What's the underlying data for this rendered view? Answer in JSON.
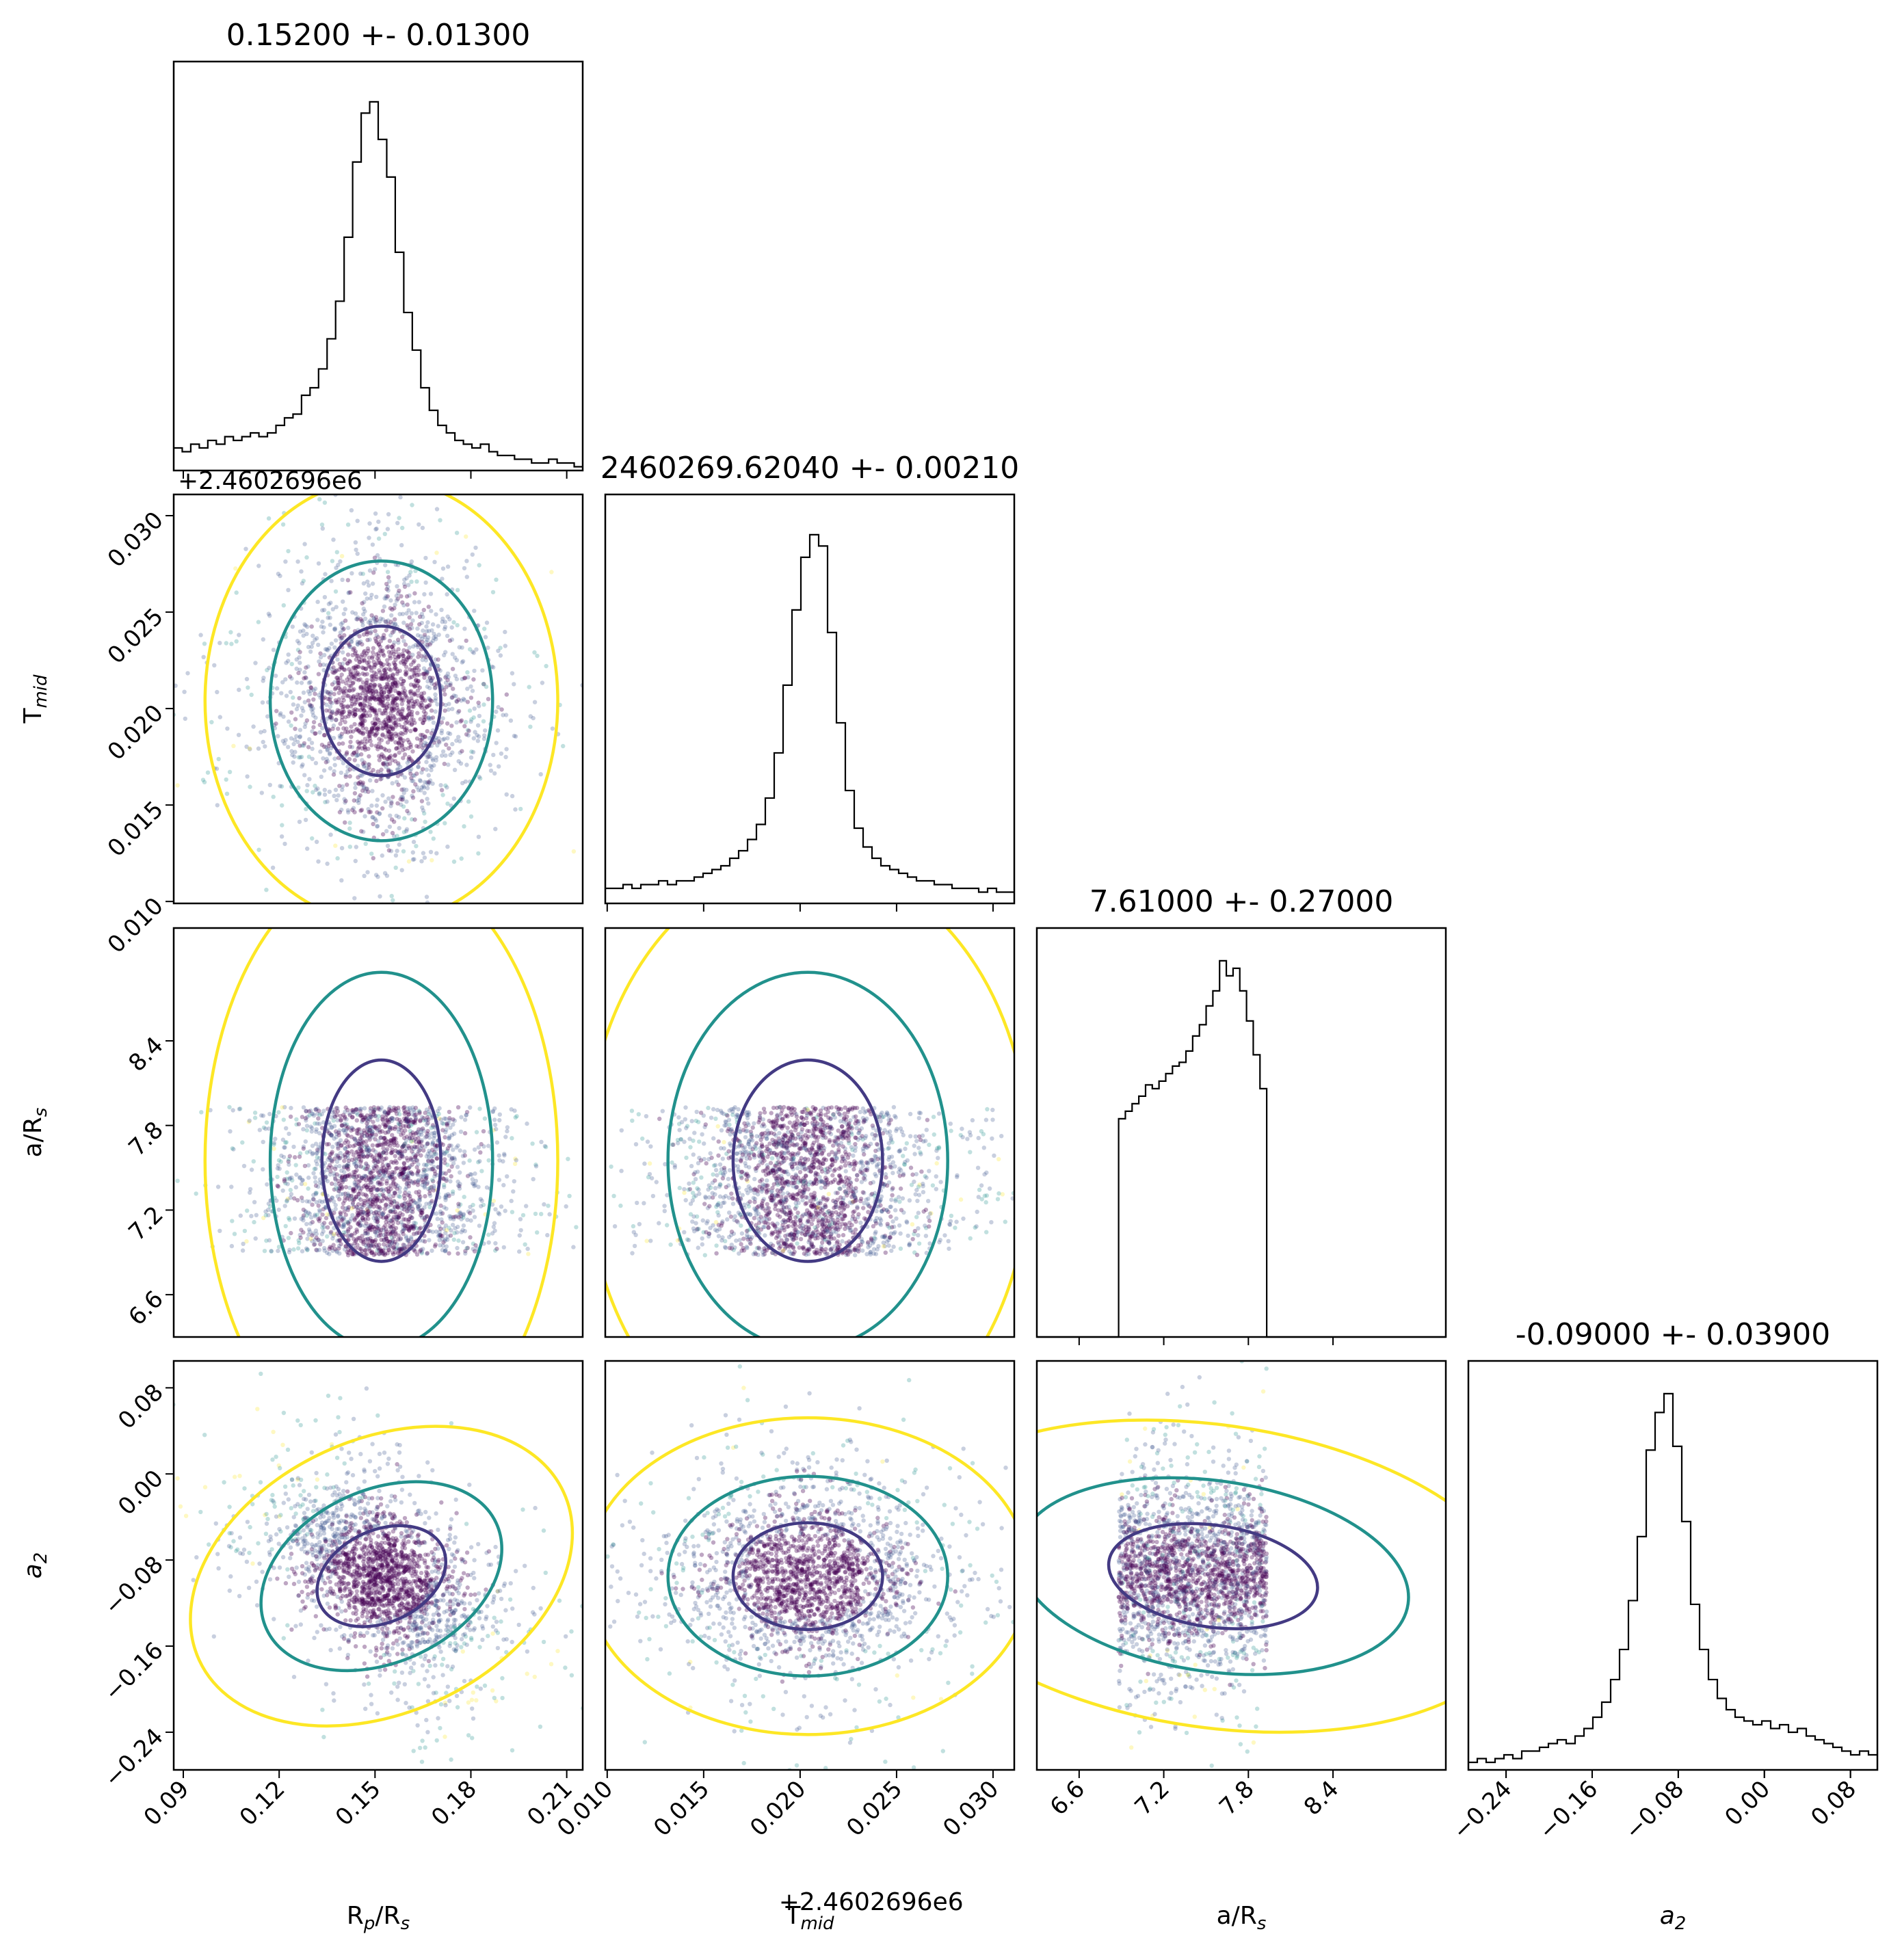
{
  "chart_data": {
    "type": "scatter",
    "layout": "corner-plot",
    "parameters": [
      {
        "key": "rprs",
        "label": "R",
        "label_sub": "p",
        "label_tail": "/R",
        "label_sub2": "s",
        "title": "0.15200 +- 0.01300",
        "range": [
          0.087,
          0.215
        ],
        "ticks": [
          0.09,
          0.12,
          0.15,
          0.18,
          0.21
        ],
        "tick_labels": [
          "0.09",
          "0.12",
          "0.15",
          "0.18",
          "0.21"
        ],
        "hist": [
          0.06,
          0.05,
          0.07,
          0.06,
          0.08,
          0.07,
          0.09,
          0.08,
          0.09,
          0.1,
          0.09,
          0.1,
          0.12,
          0.14,
          0.15,
          0.2,
          0.22,
          0.27,
          0.35,
          0.45,
          0.62,
          0.82,
          0.95,
          0.98,
          0.88,
          0.78,
          0.58,
          0.42,
          0.32,
          0.22,
          0.16,
          0.12,
          0.1,
          0.08,
          0.07,
          0.06,
          0.07,
          0.05,
          0.04,
          0.04,
          0.03,
          0.03,
          0.02,
          0.02,
          0.03,
          0.02,
          0.02,
          0.01
        ]
      },
      {
        "key": "tmid",
        "label": "T",
        "label_sub": "mid",
        "label_tail": "",
        "label_sub2": "",
        "title": "2460269.62040 +- 0.00210",
        "range": [
          0.0099,
          0.0311
        ],
        "ticks": [
          0.01,
          0.015,
          0.02,
          0.025,
          0.03
        ],
        "tick_labels": [
          "0.010",
          "0.015",
          "0.020",
          "0.025",
          "0.030"
        ],
        "offset": "+2.4602696e6",
        "hist": [
          0.04,
          0.04,
          0.05,
          0.04,
          0.05,
          0.05,
          0.06,
          0.05,
          0.06,
          0.06,
          0.07,
          0.08,
          0.09,
          0.1,
          0.12,
          0.14,
          0.17,
          0.21,
          0.28,
          0.4,
          0.58,
          0.78,
          0.92,
          0.98,
          0.95,
          0.72,
          0.48,
          0.3,
          0.2,
          0.15,
          0.12,
          0.1,
          0.09,
          0.08,
          0.07,
          0.06,
          0.06,
          0.05,
          0.05,
          0.04,
          0.04,
          0.04,
          0.03,
          0.04,
          0.03,
          0.03
        ]
      },
      {
        "key": "ars",
        "label": "a/R",
        "label_sub": "s",
        "label_tail": "",
        "label_sub2": "",
        "title": "7.61000 +- 0.27000",
        "range": [
          6.3,
          9.2
        ],
        "ticks": [
          6.6,
          7.2,
          7.8,
          8.4
        ],
        "tick_labels": [
          "6.6",
          "7.2",
          "7.8",
          "8.4"
        ],
        "uniform": [
          6.88,
          7.93
        ],
        "hist": [
          0.58,
          0.6,
          0.62,
          0.64,
          0.67,
          0.66,
          0.68,
          0.7,
          0.72,
          0.73,
          0.76,
          0.8,
          0.83,
          0.88,
          0.92,
          1.0,
          0.96,
          0.98,
          0.92,
          0.84,
          0.75,
          0.66
        ]
      },
      {
        "key": "a2",
        "label": "a",
        "label_sub": "2",
        "label_tail": "",
        "label_sub2": "",
        "italic": true,
        "title": "-0.09000 +- 0.03900",
        "range": [
          -0.275,
          0.105
        ],
        "ticks": [
          -0.24,
          -0.16,
          -0.08,
          0.0,
          0.08
        ],
        "tick_labels": [
          "−0.24",
          "−0.16",
          "−0.08",
          "0.00",
          "0.08"
        ],
        "hist": [
          0.02,
          0.03,
          0.02,
          0.03,
          0.04,
          0.03,
          0.05,
          0.05,
          0.06,
          0.07,
          0.08,
          0.07,
          0.09,
          0.11,
          0.14,
          0.18,
          0.24,
          0.32,
          0.45,
          0.62,
          0.85,
          0.95,
          1.0,
          0.86,
          0.66,
          0.44,
          0.32,
          0.24,
          0.19,
          0.16,
          0.14,
          0.13,
          0.12,
          0.13,
          0.11,
          0.12,
          0.1,
          0.11,
          0.09,
          0.08,
          0.07,
          0.06,
          0.05,
          0.04,
          0.05,
          0.04
        ]
      }
    ],
    "correlations": {
      "rprs|a2": -0.55,
      "tmid|a2": 0.0,
      "rprs|tmid": 0.0,
      "ars|a2": 0.18
    },
    "contour_levels": [
      "1-sigma",
      "2-sigma",
      "3-sigma"
    ],
    "colors": {
      "sigma1": "#433a83",
      "sigma2": "#21918c",
      "sigma3": "#fde725",
      "points_dense": "#440154",
      "hist": "#000000"
    }
  }
}
